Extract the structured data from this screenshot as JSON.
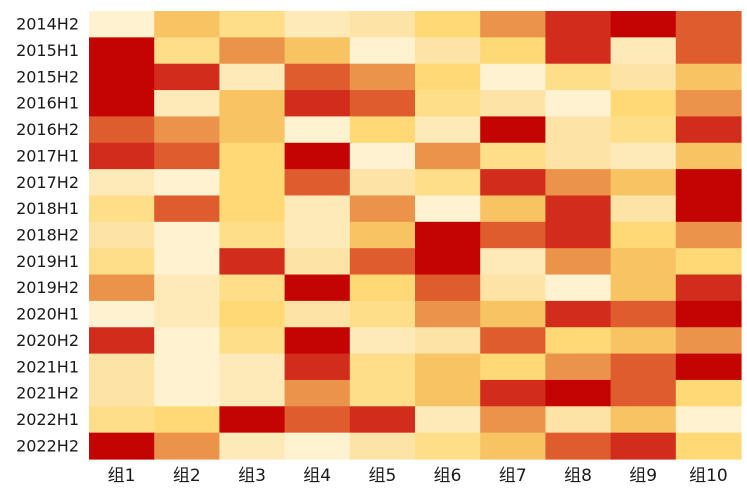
{
  "chart_data": {
    "type": "heatmap",
    "title": "",
    "xlabel": "",
    "ylabel": "",
    "colormap": "YlOrRd-like, low = pale yellow, high = dark red",
    "colors": [
      "#fff2d0",
      "#feeab8",
      "#fee3a6",
      "#fede88",
      "#fed975",
      "#f7c363",
      "#eb924b",
      "#df5c2f",
      "#d12c1c",
      "#c40402"
    ],
    "legend": "none",
    "x_categories": [
      "组1",
      "组2",
      "组3",
      "组4",
      "组5",
      "组6",
      "组7",
      "组8",
      "组9",
      "组10"
    ],
    "y_categories": [
      "2014H2",
      "2015H1",
      "2015H2",
      "2016H1",
      "2016H2",
      "2017H1",
      "2017H2",
      "2018H1",
      "2018H2",
      "2019H1",
      "2019H2",
      "2020H1",
      "2020H2",
      "2021H1",
      "2021H2",
      "2022H1",
      "2022H2"
    ],
    "value_scale": "relative intensity level 0 (lowest) to 9 (highest), estimated from cell colour",
    "values": [
      [
        0,
        5,
        3,
        1,
        2,
        4,
        6,
        8,
        9,
        7
      ],
      [
        9,
        3,
        6,
        5,
        0,
        2,
        4,
        8,
        1,
        7
      ],
      [
        9,
        8,
        1,
        7,
        6,
        4,
        0,
        3,
        2,
        5
      ],
      [
        9,
        1,
        5,
        8,
        7,
        3,
        2,
        0,
        4,
        6
      ],
      [
        7,
        6,
        5,
        0,
        4,
        1,
        9,
        2,
        3,
        8
      ],
      [
        8,
        7,
        4,
        9,
        0,
        6,
        3,
        2,
        1,
        5
      ],
      [
        1,
        0,
        4,
        7,
        2,
        3,
        8,
        6,
        5,
        9
      ],
      [
        3,
        7,
        4,
        1,
        6,
        0,
        5,
        8,
        2,
        9
      ],
      [
        2,
        0,
        3,
        1,
        5,
        9,
        7,
        8,
        4,
        6
      ],
      [
        3,
        0,
        8,
        2,
        7,
        9,
        1,
        6,
        5,
        4
      ],
      [
        6,
        1,
        3,
        9,
        4,
        7,
        2,
        0,
        5,
        8
      ],
      [
        0,
        1,
        4,
        2,
        3,
        6,
        5,
        8,
        7,
        9
      ],
      [
        8,
        0,
        3,
        9,
        1,
        2,
        7,
        4,
        5,
        6
      ],
      [
        2,
        0,
        1,
        8,
        3,
        5,
        4,
        6,
        7,
        9
      ],
      [
        2,
        0,
        1,
        6,
        3,
        5,
        8,
        9,
        7,
        4
      ],
      [
        3,
        4,
        9,
        7,
        8,
        1,
        6,
        2,
        5,
        0
      ],
      [
        9,
        6,
        1,
        0,
        2,
        3,
        5,
        7,
        8,
        4
      ]
    ]
  }
}
